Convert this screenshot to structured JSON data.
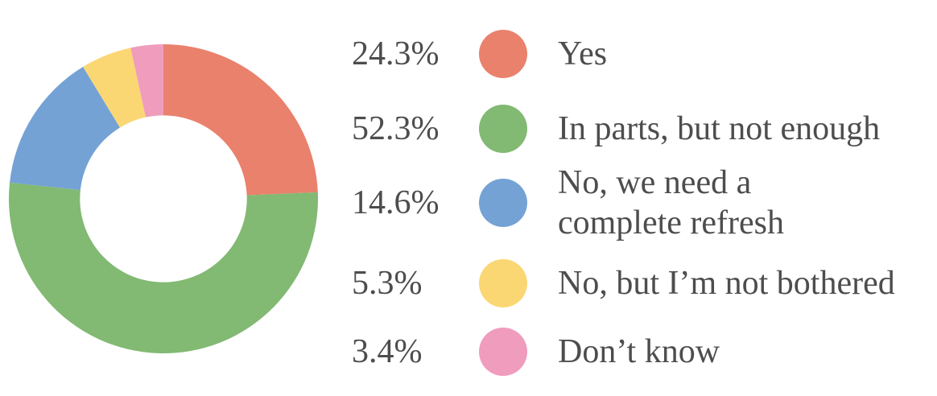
{
  "chart_data": {
    "type": "pie",
    "subtype": "donut",
    "title": "",
    "categories": [
      "Yes",
      "In parts, but not enough",
      "No, we need a complete refresh",
      "No, but I’m not bothered",
      "Don’t know"
    ],
    "values": [
      24.3,
      52.3,
      14.6,
      5.3,
      3.4
    ],
    "unit": "%",
    "colors": [
      "#E9816C",
      "#82B973",
      "#74A2D5",
      "#FBD774",
      "#F09CBD"
    ],
    "start_angle_deg": 0,
    "direction": "clockwise",
    "inner_radius_ratio": 0.54,
    "legend_position": "right",
    "text_color": "#4D4D4F",
    "background_color": "#FFFFFF",
    "legend": [
      {
        "percent_label": "24.3%",
        "label": "Yes"
      },
      {
        "percent_label": "52.3%",
        "label": "In parts, but not enough"
      },
      {
        "percent_label": "14.6%",
        "label": "No, we need a\ncomplete refresh"
      },
      {
        "percent_label": "5.3%",
        "label": "No, but I’m not bothered"
      },
      {
        "percent_label": "3.4%",
        "label": "Don’t know"
      }
    ]
  }
}
